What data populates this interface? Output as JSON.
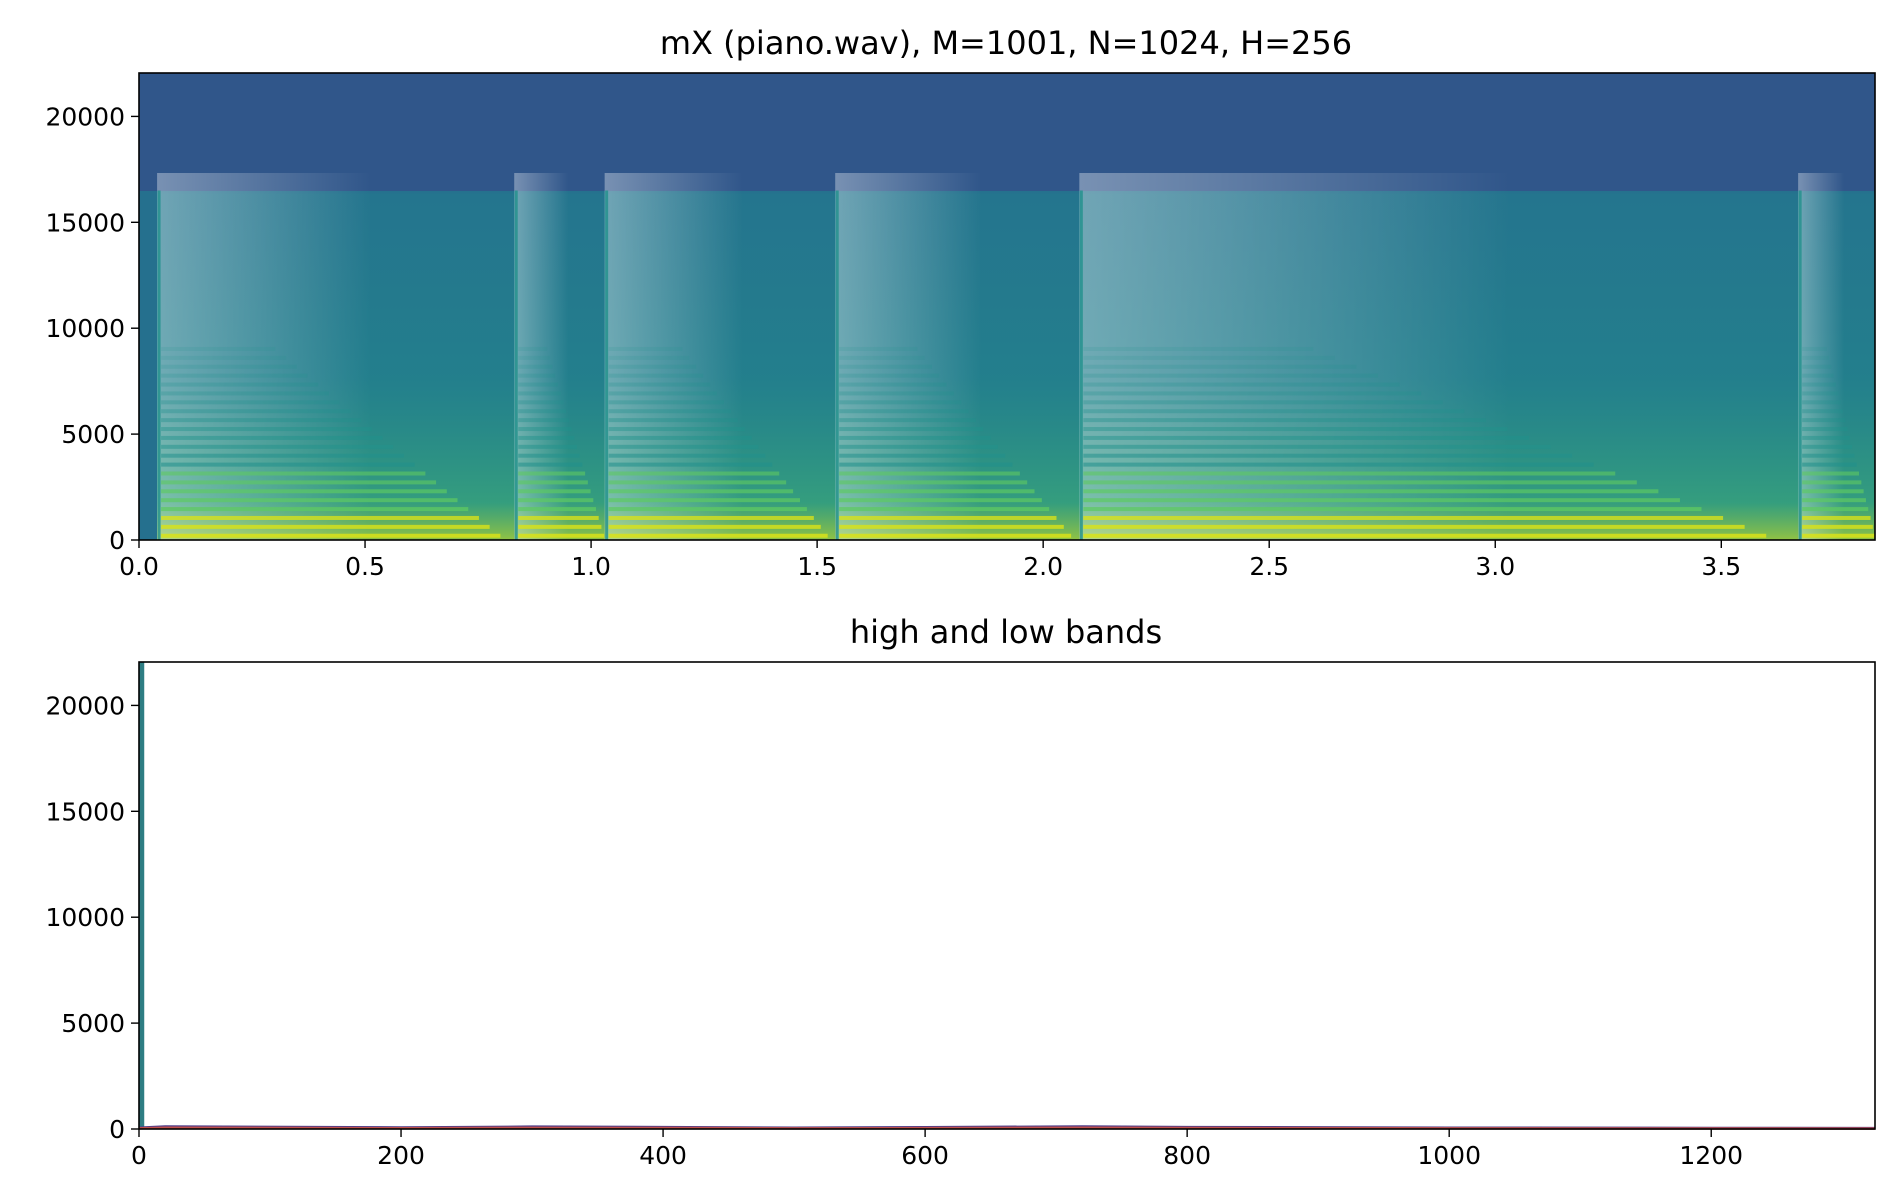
{
  "chart_data": [
    {
      "type": "heatmap",
      "title": "mX (piano.wav), M=1001, N=1024, H=256",
      "xlabel": "",
      "ylabel": "",
      "xlim": [
        0,
        3.84
      ],
      "ylim": [
        0,
        22050
      ],
      "xticks": [
        0.0,
        0.5,
        1.0,
        1.5,
        2.0,
        2.5,
        3.0,
        3.5
      ],
      "xtick_labels": [
        "0.0",
        "0.5",
        "1.0",
        "1.5",
        "2.0",
        "2.5",
        "3.0",
        "3.5"
      ],
      "yticks": [
        0,
        5000,
        10000,
        15000,
        20000
      ],
      "ytick_labels": [
        "0",
        "5000",
        "10000",
        "15000",
        "20000"
      ],
      "colormap": "viridis",
      "grid": false,
      "onsets": [
        0.04,
        0.83,
        1.03,
        1.54,
        2.08,
        3.67
      ],
      "noise_floor_cutoff_hz": 16500,
      "colors": {
        "low": "#2c6f8e",
        "mid": "#21918c",
        "high": "#5ec962",
        "peak": "#d8e219"
      }
    },
    {
      "type": "line",
      "title": "high and low bands",
      "xlabel": "",
      "ylabel": "",
      "xlim": [
        0,
        1325
      ],
      "ylim": [
        0,
        22050
      ],
      "xticks": [
        0,
        200,
        400,
        600,
        800,
        1000,
        1200
      ],
      "xtick_labels": [
        "0",
        "200",
        "400",
        "600",
        "800",
        "1000",
        "1200"
      ],
      "yticks": [
        0,
        5000,
        10000,
        15000,
        20000
      ],
      "ytick_labels": [
        "0",
        "5000",
        "10000",
        "15000",
        "20000"
      ],
      "grid": false,
      "inset_strip": {
        "x_start": 0,
        "x_end": 4,
        "y_start": 0,
        "y_end": 22050
      },
      "series": [
        {
          "color": "#4c3c8a",
          "x": [
            0,
            20,
            200,
            300,
            400,
            500,
            600,
            720,
            800,
            1000,
            1200,
            1325
          ],
          "y": [
            60,
            120,
            70,
            110,
            90,
            60,
            80,
            120,
            90,
            60,
            50,
            40
          ]
        },
        {
          "color": "#c0504d",
          "x": [
            0,
            20,
            200,
            300,
            400,
            500,
            600,
            720,
            800,
            1000,
            1200,
            1325
          ],
          "y": [
            30,
            60,
            35,
            55,
            45,
            30,
            40,
            60,
            45,
            30,
            25,
            20
          ]
        }
      ]
    }
  ]
}
